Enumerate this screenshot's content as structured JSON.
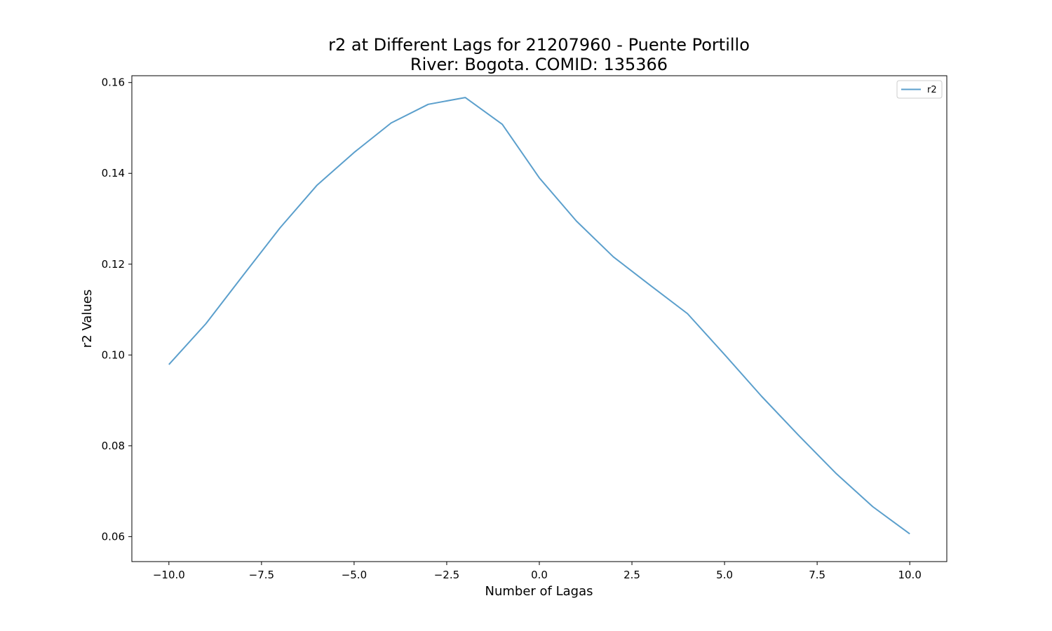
{
  "chart_data": {
    "type": "line",
    "title": "r2 at Different Lags for 21207960 - Puente Portillo",
    "subtitle": "River: Bogota. COMID: 135366",
    "xlabel": "Number of Lagas",
    "ylabel": "r2 Values",
    "xlim": [
      -11,
      11
    ],
    "ylim": [
      0.0545,
      0.1615
    ],
    "xticks": [
      -10.0,
      -7.5,
      -5.0,
      -2.5,
      0.0,
      2.5,
      5.0,
      7.5,
      10.0
    ],
    "xtick_labels": [
      "−10.0",
      "−7.5",
      "−5.0",
      "−2.5",
      "0.0",
      "2.5",
      "5.0",
      "7.5",
      "10.0"
    ],
    "yticks": [
      0.06,
      0.08,
      0.1,
      0.12,
      0.14,
      0.16
    ],
    "ytick_labels": [
      "0.06",
      "0.08",
      "0.10",
      "0.12",
      "0.14",
      "0.16"
    ],
    "grid": false,
    "legend_position": "top-right",
    "series": [
      {
        "name": "r2",
        "color": "#5b9fcc",
        "x": [
          -10,
          -9,
          -8,
          -7,
          -6,
          -5,
          -4,
          -3,
          -2,
          -1,
          0,
          1,
          2,
          3,
          4,
          5,
          6,
          7,
          8,
          9,
          10
        ],
        "y": [
          0.0979,
          0.1069,
          0.1175,
          0.128,
          0.1374,
          0.1446,
          0.1511,
          0.1552,
          0.1567,
          0.1508,
          0.139,
          0.1295,
          0.1216,
          0.1153,
          0.1091,
          0.1001,
          0.0909,
          0.0823,
          0.074,
          0.0666,
          0.0606
        ]
      }
    ]
  }
}
